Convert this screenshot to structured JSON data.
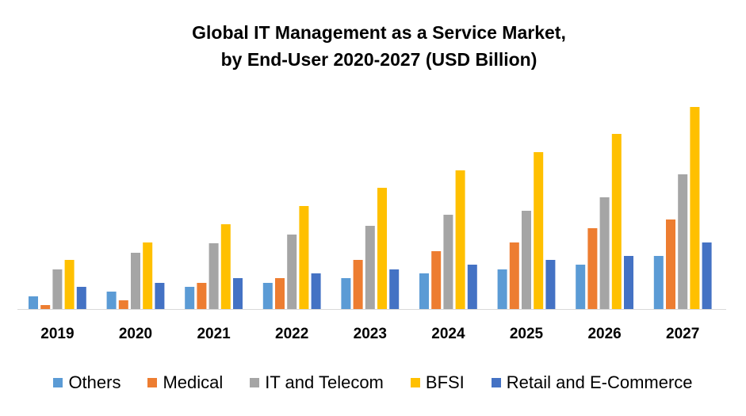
{
  "chart_data": {
    "type": "bar",
    "title": "Global IT Management as a Service Market, by End-User 2020-2027 (USD Billion)",
    "title_lines": [
      "Global IT Management as a Service Market,",
      "by End-User 2020-2027 (USD Billion)"
    ],
    "xlabel": "",
    "ylabel": "",
    "y_axis_visible": false,
    "grid": false,
    "legend_position": "bottom",
    "ylim": [
      0,
      27
    ],
    "categories": [
      "2019",
      "2020",
      "2021",
      "2022",
      "2023",
      "2024",
      "2025",
      "2026",
      "2027"
    ],
    "series": [
      {
        "name": "Others",
        "color": "#5B9BD5",
        "values": [
          1.6,
          2.2,
          2.8,
          3.3,
          3.9,
          4.5,
          5.0,
          5.6,
          6.7
        ]
      },
      {
        "name": "Medical",
        "color": "#ED7D31",
        "values": [
          0.5,
          1.1,
          3.3,
          3.9,
          6.2,
          7.3,
          8.4,
          10.2,
          11.3
        ]
      },
      {
        "name": "IT and Telecom",
        "color": "#A5A5A5",
        "values": [
          5.0,
          7.1,
          8.3,
          9.4,
          10.5,
          11.9,
          12.4,
          14.1,
          17.0
        ]
      },
      {
        "name": "BFSI",
        "color": "#FFC000",
        "values": [
          6.2,
          8.4,
          10.7,
          13.0,
          15.3,
          17.5,
          19.8,
          22.1,
          25.5
        ]
      },
      {
        "name": "Retail and E-Commerce",
        "color": "#4472C4",
        "values": [
          2.8,
          3.3,
          3.9,
          4.5,
          5.0,
          5.6,
          6.2,
          6.7,
          8.4
        ]
      }
    ]
  }
}
